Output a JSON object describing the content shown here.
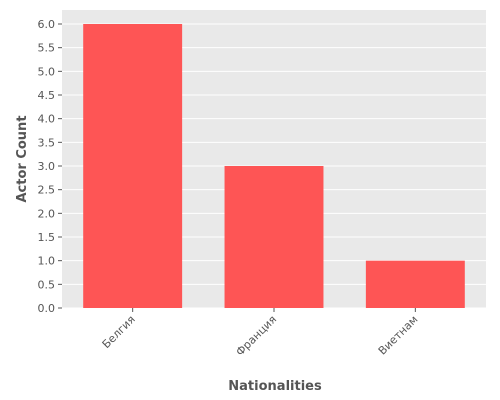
{
  "chart_data": {
    "type": "bar",
    "title": "",
    "xlabel": "Nationalities",
    "ylabel": "Actor Count",
    "categories": [
      "Белгия",
      "Франция",
      "Виетнам"
    ],
    "values": [
      6,
      3,
      1
    ],
    "ylim": [
      0,
      6
    ],
    "yticks": [
      "0.0",
      "0.5",
      "1.0",
      "1.5",
      "2.0",
      "2.5",
      "3.0",
      "3.5",
      "4.0",
      "4.5",
      "5.0",
      "5.5",
      "6.0"
    ],
    "grid": true,
    "legend": "none",
    "colors": {
      "bar": "#fe5555",
      "plot_background": "#e9e9e9",
      "gridline": "#ffffff",
      "text": "#555555"
    }
  }
}
